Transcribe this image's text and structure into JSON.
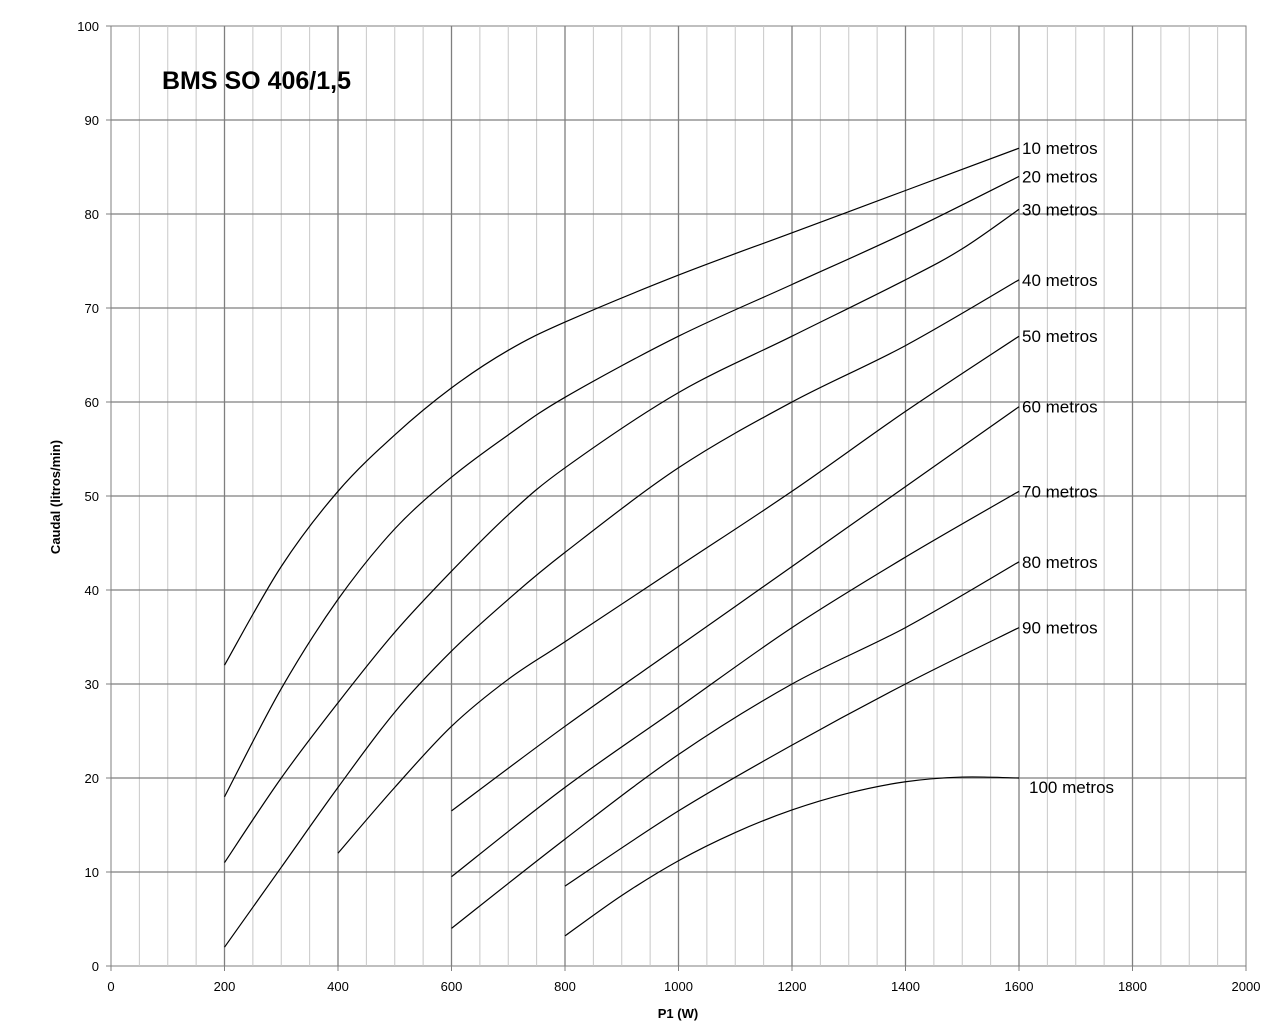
{
  "chart_data": {
    "type": "line",
    "title": "BMS SO 406/1,5",
    "xlabel": "P1  (W)",
    "ylabel": "Caudal (litros/min)",
    "xlim": [
      0,
      2000
    ],
    "ylim": [
      0,
      100
    ],
    "x_ticks": [
      "0",
      "200",
      "400",
      "600",
      "800",
      "1000",
      "1200",
      "1400",
      "1600",
      "1800",
      "2000"
    ],
    "y_ticks": [
      "0",
      "10",
      "20",
      "30",
      "40",
      "50",
      "60",
      "70",
      "80",
      "90",
      "100"
    ],
    "grid": true,
    "legend": "inline labels at line ends",
    "colors": {
      "line": "#000000",
      "major_grid": "#7f7f7f",
      "minor_grid": "#c8c8c8"
    },
    "series": [
      {
        "name": "10 metros",
        "points": [
          [
            200,
            32
          ],
          [
            300,
            42.5
          ],
          [
            400,
            50.5
          ],
          [
            500,
            56.5
          ],
          [
            600,
            61.5
          ],
          [
            700,
            65.5
          ],
          [
            800,
            68.5
          ],
          [
            1000,
            73.5
          ],
          [
            1200,
            78
          ],
          [
            1400,
            82.5
          ],
          [
            1600,
            87
          ]
        ]
      },
      {
        "name": "20 metros",
        "points": [
          [
            200,
            18
          ],
          [
            300,
            29.5
          ],
          [
            400,
            39
          ],
          [
            500,
            46.5
          ],
          [
            600,
            52
          ],
          [
            700,
            56.5
          ],
          [
            800,
            60.5
          ],
          [
            1000,
            67
          ],
          [
            1200,
            72.5
          ],
          [
            1400,
            78
          ],
          [
            1600,
            84
          ]
        ]
      },
      {
        "name": "30 metros",
        "points": [
          [
            200,
            11
          ],
          [
            300,
            20
          ],
          [
            400,
            28
          ],
          [
            500,
            35.5
          ],
          [
            600,
            42
          ],
          [
            700,
            48
          ],
          [
            800,
            53
          ],
          [
            1000,
            61
          ],
          [
            1200,
            67
          ],
          [
            1400,
            73
          ],
          [
            1500,
            76.3
          ],
          [
            1600,
            80.5
          ]
        ]
      },
      {
        "name": "40 metros",
        "points": [
          [
            200,
            2
          ],
          [
            300,
            10.5
          ],
          [
            400,
            19
          ],
          [
            500,
            27
          ],
          [
            600,
            33.5
          ],
          [
            700,
            39
          ],
          [
            800,
            44
          ],
          [
            1000,
            53
          ],
          [
            1200,
            60
          ],
          [
            1400,
            66
          ],
          [
            1600,
            73
          ]
        ]
      },
      {
        "name": "50 metros",
        "points": [
          [
            400,
            12
          ],
          [
            500,
            19
          ],
          [
            600,
            25.5
          ],
          [
            700,
            30.5
          ],
          [
            800,
            34.5
          ],
          [
            1000,
            42.5
          ],
          [
            1200,
            50.5
          ],
          [
            1400,
            59
          ],
          [
            1600,
            67
          ]
        ]
      },
      {
        "name": "60 metros",
        "points": [
          [
            600,
            16.5
          ],
          [
            800,
            25.5
          ],
          [
            1000,
            34
          ],
          [
            1200,
            42.5
          ],
          [
            1400,
            51
          ],
          [
            1600,
            59.5
          ]
        ]
      },
      {
        "name": "70 metros",
        "points": [
          [
            600,
            9.5
          ],
          [
            800,
            19
          ],
          [
            1000,
            27.5
          ],
          [
            1200,
            36
          ],
          [
            1400,
            43.5
          ],
          [
            1600,
            50.5
          ]
        ]
      },
      {
        "name": "80 metros",
        "points": [
          [
            600,
            4
          ],
          [
            800,
            13.5
          ],
          [
            1000,
            22.5
          ],
          [
            1200,
            30
          ],
          [
            1400,
            36
          ],
          [
            1600,
            43
          ]
        ]
      },
      {
        "name": "90 metros",
        "points": [
          [
            800,
            8.5
          ],
          [
            1000,
            16.5
          ],
          [
            1200,
            23.5
          ],
          [
            1400,
            30
          ],
          [
            1600,
            36
          ]
        ]
      },
      {
        "name": "100 metros",
        "points": [
          [
            800,
            3.2
          ],
          [
            900,
            7.5
          ],
          [
            1000,
            11.2
          ],
          [
            1100,
            14.2
          ],
          [
            1200,
            16.6
          ],
          [
            1300,
            18.4
          ],
          [
            1400,
            19.6
          ],
          [
            1500,
            20.1
          ],
          [
            1600,
            20
          ]
        ]
      }
    ]
  }
}
